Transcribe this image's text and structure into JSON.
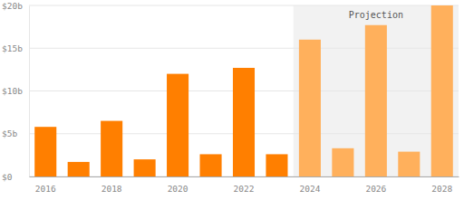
{
  "chart_data": {
    "type": "bar",
    "categories": [
      "2016",
      null,
      "2018",
      null,
      "2020",
      null,
      "2022",
      null,
      "2024",
      null,
      "2026",
      null,
      "2028"
    ],
    "values": [
      5.8,
      1.7,
      6.5,
      2.0,
      12.0,
      2.6,
      12.7,
      2.6,
      16.0,
      3.3,
      17.7,
      2.9,
      20.0
    ],
    "colors": [
      "#ff7f00",
      "#ff7f00",
      "#ff7f00",
      "#ff7f00",
      "#ff7f00",
      "#ff7f00",
      "#ff7f00",
      "#ff7f00",
      "#ffb05c",
      "#ffb05c",
      "#ffb05c",
      "#ffb05c",
      "#ffb05c"
    ],
    "ylim": [
      0,
      20
    ],
    "yticks": [
      {
        "value": 0,
        "label": "$0"
      },
      {
        "value": 5,
        "label": "$5b"
      },
      {
        "value": 10,
        "label": "$10b"
      },
      {
        "value": 15,
        "label": "$15b"
      },
      {
        "value": 20,
        "label": "$20b"
      }
    ],
    "grid": true,
    "annotations": [
      {
        "text": "Projection",
        "start_index": 8
      }
    ]
  }
}
